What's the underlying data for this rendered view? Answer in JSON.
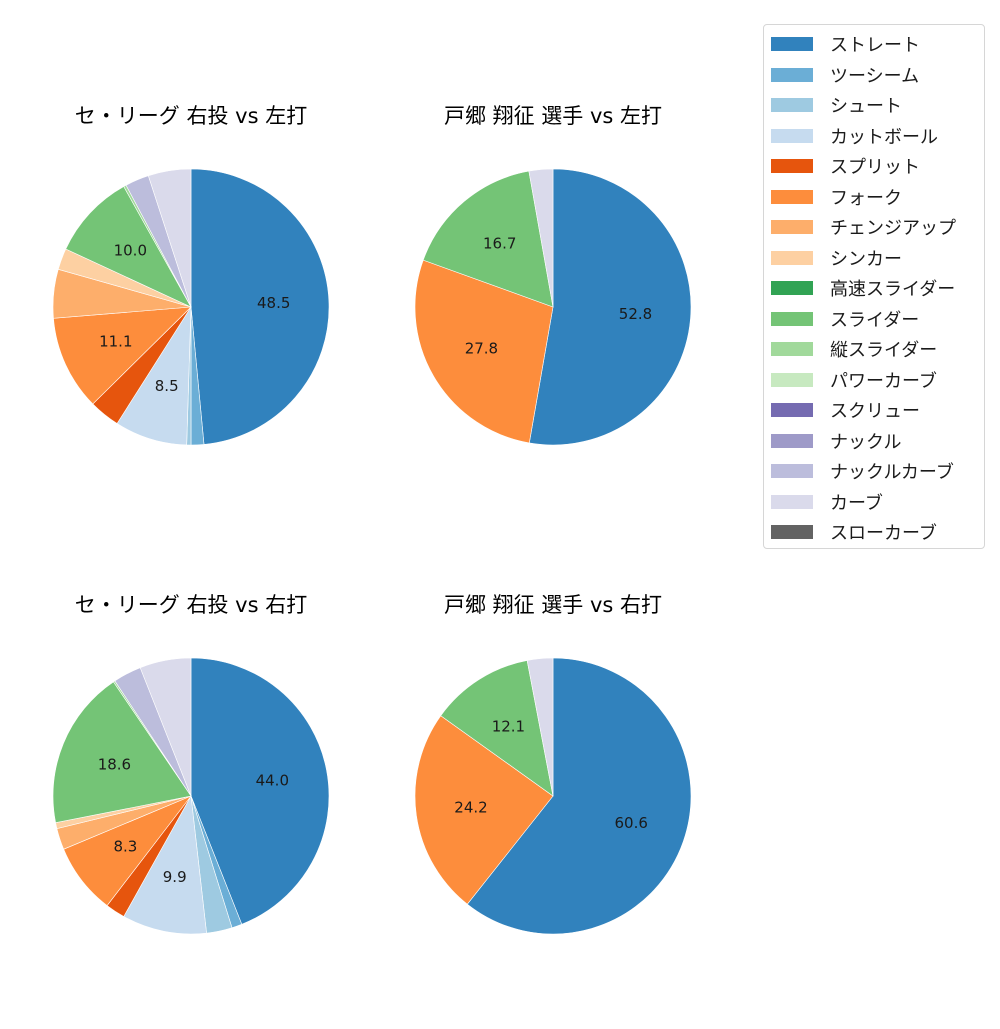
{
  "legend": {
    "items": [
      {
        "label": "ストレート",
        "color": "#3182bd"
      },
      {
        "label": "ツーシーム",
        "color": "#6baed6"
      },
      {
        "label": "シュート",
        "color": "#9ecae1"
      },
      {
        "label": "カットボール",
        "color": "#c6dbef"
      },
      {
        "label": "スプリット",
        "color": "#e6550d"
      },
      {
        "label": "フォーク",
        "color": "#fd8d3c"
      },
      {
        "label": "チェンジアップ",
        "color": "#fdae6b"
      },
      {
        "label": "シンカー",
        "color": "#fdd0a2"
      },
      {
        "label": "高速スライダー",
        "color": "#31a354"
      },
      {
        "label": "スライダー",
        "color": "#74c476"
      },
      {
        "label": "縦スライダー",
        "color": "#a1d99b"
      },
      {
        "label": "パワーカーブ",
        "color": "#c7e9c0"
      },
      {
        "label": "スクリュー",
        "color": "#756bb1"
      },
      {
        "label": "ナックル",
        "color": "#9e9ac8"
      },
      {
        "label": "ナックルカーブ",
        "color": "#bcbddc"
      },
      {
        "label": "カーブ",
        "color": "#dadaeb"
      },
      {
        "label": "スローカーブ",
        "color": "#636363"
      }
    ]
  },
  "chart_data": [
    {
      "type": "pie",
      "title": "セ・リーグ 右投 vs 左打",
      "categories": [
        "ストレート",
        "ツーシーム",
        "シュート",
        "カットボール",
        "スプリット",
        "フォーク",
        "チェンジアップ",
        "シンカー",
        "スライダー",
        "縦スライダー",
        "ナックルカーブ",
        "カーブ"
      ],
      "values": [
        48.5,
        1.5,
        0.5,
        8.5,
        3.6,
        11.1,
        5.7,
        2.5,
        10.0,
        0.3,
        2.8,
        5.0
      ],
      "labels_shown": [
        "48.5",
        "",
        "",
        "8.5",
        "",
        "11.1",
        "",
        "",
        "10.0",
        "",
        "",
        ""
      ],
      "start_angle": 90,
      "direction": "clockwise"
    },
    {
      "type": "pie",
      "title": "戸郷 翔征 選手 vs 左打",
      "categories": [
        "ストレート",
        "フォーク",
        "スライダー",
        "カーブ"
      ],
      "values": [
        52.8,
        27.8,
        16.7,
        2.8
      ],
      "labels_shown": [
        "52.8",
        "27.8",
        "16.7",
        ""
      ],
      "start_angle": 90,
      "direction": "clockwise"
    },
    {
      "type": "pie",
      "title": "セ・リーグ 右投 vs 右打",
      "categories": [
        "ストレート",
        "ツーシーム",
        "シュート",
        "カットボール",
        "スプリット",
        "フォーク",
        "チェンジアップ",
        "シンカー",
        "スライダー",
        "縦スライダー",
        "ナックルカーブ",
        "カーブ"
      ],
      "values": [
        44.0,
        1.2,
        3.0,
        9.9,
        2.3,
        8.3,
        2.5,
        0.7,
        18.6,
        0.2,
        3.3,
        6.0
      ],
      "labels_shown": [
        "44.0",
        "",
        "",
        "9.9",
        "",
        "8.3",
        "",
        "",
        "18.6",
        "",
        "",
        ""
      ],
      "start_angle": 90,
      "direction": "clockwise"
    },
    {
      "type": "pie",
      "title": "戸郷 翔征 選手 vs 右打",
      "categories": [
        "ストレート",
        "フォーク",
        "スライダー",
        "カーブ"
      ],
      "values": [
        60.6,
        24.2,
        12.1,
        3.0
      ],
      "labels_shown": [
        "60.6",
        "24.2",
        "12.1",
        ""
      ],
      "start_angle": 90,
      "direction": "clockwise"
    }
  ],
  "panels": [
    {
      "title": "セ・リーグ 右投 vs 左打"
    },
    {
      "title": "戸郷 翔征 選手 vs 左打"
    },
    {
      "title": "セ・リーグ 右投 vs 右打"
    },
    {
      "title": "戸郷 翔征 選手 vs 右打"
    }
  ]
}
